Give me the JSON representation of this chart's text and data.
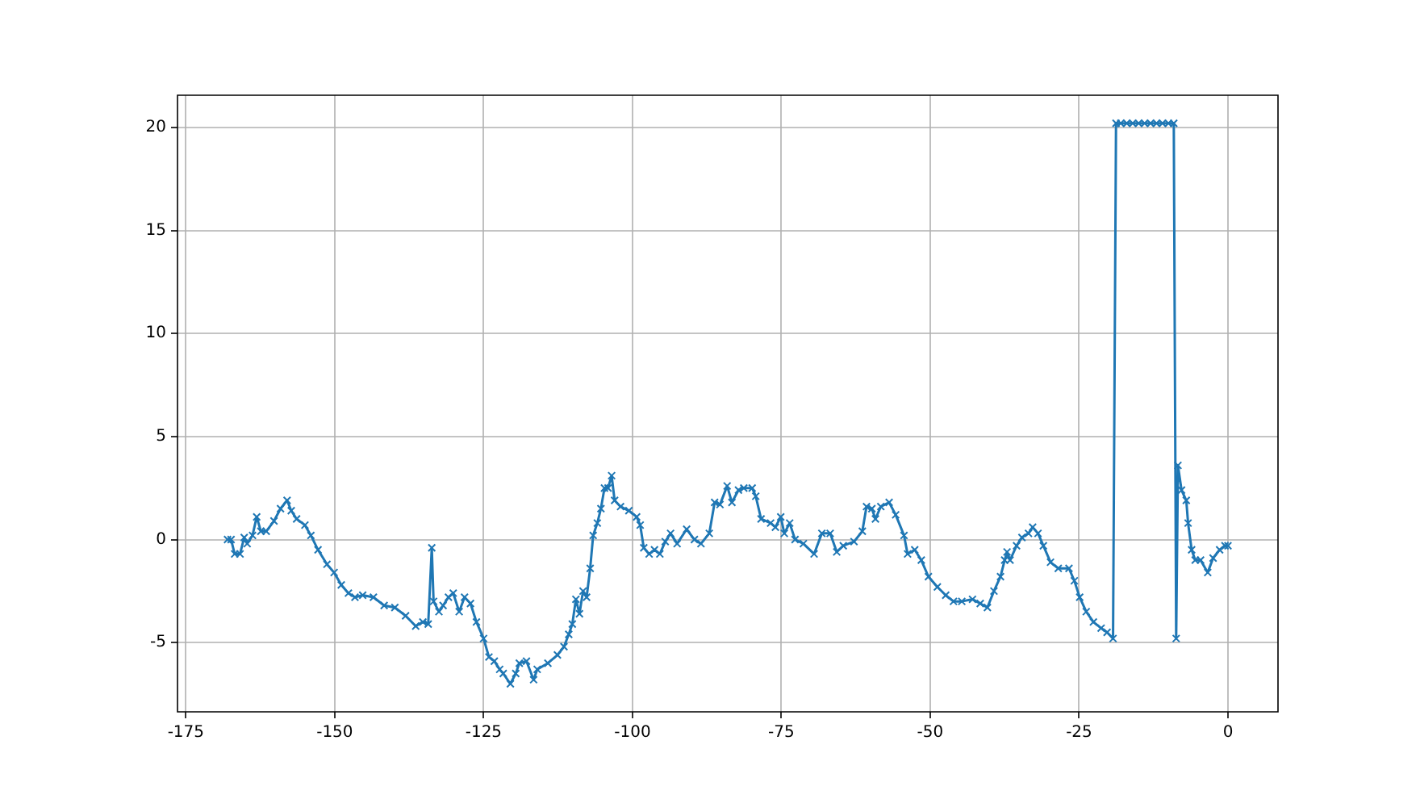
{
  "chart_data": {
    "type": "line",
    "marker": "cross",
    "line_style": "solid",
    "grid": true,
    "xlim": [
      -176.4,
      8.4
    ],
    "ylim": [
      -8.36,
      21.56
    ],
    "xticks": [
      -175,
      -150,
      -125,
      -100,
      -75,
      -50,
      -25,
      0
    ],
    "yticks": [
      -5,
      0,
      5,
      10,
      15,
      20
    ],
    "x": [
      -168.0,
      -167.4,
      -166.8,
      -165.9,
      -165.2,
      -164.7,
      -163.8,
      -163.1,
      -162.4,
      -161.5,
      -160.2,
      -159.1,
      -158.0,
      -157.3,
      -156.4,
      -155.0,
      -154.0,
      -152.8,
      -151.3,
      -150.1,
      -148.9,
      -147.7,
      -146.6,
      -145.3,
      -143.5,
      -141.7,
      -139.9,
      -138.1,
      -136.4,
      -135.2,
      -134.3,
      -133.7,
      -133.4,
      -132.5,
      -131.8,
      -130.9,
      -130.1,
      -129.1,
      -128.2,
      -127.2,
      -126.2,
      -125.0,
      -124.1,
      -123.2,
      -122.3,
      -121.7,
      -120.5,
      -119.6,
      -119.0,
      -117.8,
      -116.6,
      -116.0,
      -114.2,
      -112.6,
      -111.5,
      -110.7,
      -110.1,
      -109.5,
      -108.9,
      -108.3,
      -107.7,
      -107.1,
      -106.6,
      -105.9,
      -105.3,
      -104.7,
      -104.1,
      -103.5,
      -103.0,
      -102.0,
      -100.6,
      -99.3,
      -98.7,
      -98.1,
      -97.2,
      -96.3,
      -95.4,
      -94.5,
      -93.6,
      -92.5,
      -90.9,
      -89.6,
      -88.5,
      -87.1,
      -86.2,
      -85.3,
      -84.1,
      -83.3,
      -82.2,
      -81.3,
      -79.9,
      -79.3,
      -78.4,
      -76.8,
      -76.0,
      -75.1,
      -74.5,
      -73.6,
      -72.7,
      -71.3,
      -69.5,
      -68.2,
      -66.8,
      -65.7,
      -64.6,
      -62.8,
      -61.4,
      -60.7,
      -59.8,
      -59.2,
      -58.3,
      -56.9,
      -55.8,
      -54.4,
      -53.8,
      -52.6,
      -51.5,
      -50.3,
      -48.8,
      -47.4,
      -46.1,
      -44.7,
      -42.9,
      -41.6,
      -40.4,
      -39.3,
      -38.2,
      -37.5,
      -37.1,
      -36.6,
      -35.5,
      -34.6,
      -33.5,
      -32.8,
      -31.9,
      -31.0,
      -29.8,
      -28.5,
      -26.7,
      -25.8,
      -24.9,
      -23.8,
      -22.6,
      -21.3,
      -20.3,
      -19.3,
      -18.8,
      -18.0,
      -17.0,
      -16.0,
      -15.0,
      -14.0,
      -13.0,
      -12.0,
      -11.0,
      -10.0,
      -9.1,
      -8.7,
      -8.4,
      -7.8,
      -7.0,
      -6.7,
      -6.1,
      -5.5,
      -4.6,
      -3.4,
      -2.5,
      -1.4,
      -0.5,
      0.0
    ],
    "series": [
      {
        "color": "#1f77b4",
        "values": [
          0.0,
          0.0,
          -0.7,
          -0.7,
          0.1,
          -0.2,
          0.2,
          1.1,
          0.4,
          0.4,
          0.9,
          1.5,
          1.9,
          1.4,
          1.0,
          0.7,
          0.2,
          -0.5,
          -1.2,
          -1.6,
          -2.2,
          -2.6,
          -2.8,
          -2.7,
          -2.8,
          -3.2,
          -3.3,
          -3.7,
          -4.2,
          -4.0,
          -4.1,
          -0.4,
          -3.0,
          -3.5,
          -3.2,
          -2.8,
          -2.6,
          -3.5,
          -2.8,
          -3.1,
          -4.0,
          -4.8,
          -5.7,
          -5.9,
          -6.3,
          -6.5,
          -7.0,
          -6.5,
          -6.0,
          -5.9,
          -6.8,
          -6.3,
          -6.0,
          -5.6,
          -5.2,
          -4.6,
          -4.1,
          -2.9,
          -3.6,
          -2.5,
          -2.8,
          -1.4,
          0.2,
          0.8,
          1.5,
          2.5,
          2.5,
          3.1,
          1.9,
          1.6,
          1.4,
          1.1,
          0.7,
          -0.4,
          -0.7,
          -0.5,
          -0.7,
          -0.1,
          0.3,
          -0.2,
          0.5,
          0.0,
          -0.2,
          0.3,
          1.8,
          1.7,
          2.6,
          1.8,
          2.4,
          2.5,
          2.5,
          2.1,
          1.0,
          0.8,
          0.6,
          1.1,
          0.3,
          0.8,
          0.0,
          -0.2,
          -0.7,
          0.3,
          0.3,
          -0.6,
          -0.3,
          -0.1,
          0.4,
          1.6,
          1.5,
          1.0,
          1.6,
          1.8,
          1.2,
          0.2,
          -0.7,
          -0.5,
          -1.0,
          -1.8,
          -2.3,
          -2.7,
          -3.0,
          -3.0,
          -2.9,
          -3.1,
          -3.3,
          -2.5,
          -1.8,
          -1.0,
          -0.6,
          -1.0,
          -0.3,
          0.1,
          0.3,
          0.6,
          0.3,
          -0.3,
          -1.1,
          -1.4,
          -1.4,
          -2.0,
          -2.8,
          -3.5,
          -4.0,
          -4.3,
          -4.5,
          -4.8,
          20.2,
          20.2,
          20.2,
          20.2,
          20.2,
          20.2,
          20.2,
          20.2,
          20.2,
          20.2,
          20.2,
          -4.8,
          3.6,
          2.4,
          1.9,
          0.8,
          -0.5,
          -1.0,
          -1.0,
          -1.6,
          -0.9,
          -0.5,
          -0.3,
          -0.3
        ]
      }
    ]
  }
}
